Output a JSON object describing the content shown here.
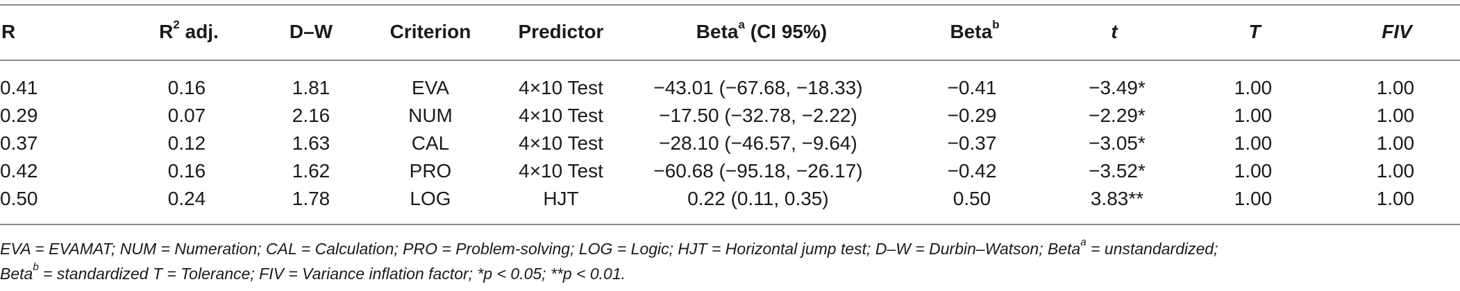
{
  "headers": {
    "r": "R",
    "r2_main": "R",
    "r2_sup": "2",
    "r2_rest": " adj.",
    "dw": "D–W",
    "criterion": "Criterion",
    "predictor": "Predictor",
    "beta_a_main": "Beta",
    "beta_a_sup": "a",
    "beta_a_rest": " (CI 95%)",
    "beta_b_main": "Beta",
    "beta_b_sup": "b",
    "t_small": "t",
    "t_cap": "T",
    "fiv": "FIV"
  },
  "rows": [
    {
      "r": "0.41",
      "r2": "0.16",
      "dw": "1.81",
      "criterion": "EVA",
      "predictor": "4×10 Test",
      "beta_a": "−43.01 (−67.68, −18.33)",
      "beta_b": "−0.41",
      "t": "−3.49*",
      "tol": "1.00",
      "fiv": "1.00"
    },
    {
      "r": "0.29",
      "r2": "0.07",
      "dw": "2.16",
      "criterion": "NUM",
      "predictor": "4×10 Test",
      "beta_a": "−17.50 (−32.78, −2.22)",
      "beta_b": "−0.29",
      "t": "−2.29*",
      "tol": "1.00",
      "fiv": "1.00"
    },
    {
      "r": "0.37",
      "r2": "0.12",
      "dw": "1.63",
      "criterion": "CAL",
      "predictor": "4×10 Test",
      "beta_a": "−28.10 (−46.57, −9.64)",
      "beta_b": "−0.37",
      "t": "−3.05*",
      "tol": "1.00",
      "fiv": "1.00"
    },
    {
      "r": "0.42",
      "r2": "0.16",
      "dw": "1.62",
      "criterion": "PRO",
      "predictor": "4×10 Test",
      "beta_a": "−60.68 (−95.18, −26.17)",
      "beta_b": "−0.42",
      "t": "−3.52*",
      "tol": "1.00",
      "fiv": "1.00"
    },
    {
      "r": "0.50",
      "r2": "0.24",
      "dw": "1.78",
      "criterion": "LOG",
      "predictor": "HJT",
      "beta_a": "0.22 (0.11, 0.35)",
      "beta_b": "0.50",
      "t": "3.83**",
      "tol": "1.00",
      "fiv": "1.00"
    }
  ],
  "footnote": {
    "line1_part1": "EVA = EVAMAT; NUM = Numeration; CAL = Calculation; PRO = Problem-solving; LOG = Logic; HJT = Horizontal jump test; D–W = Durbin–Watson; Beta",
    "line1_sup": "a",
    "line1_part2": " = unstandardized;",
    "line2_part1": "Beta",
    "line2_sup": "b",
    "line2_part2": " = standardized T = Tolerance; FIV = Variance inflation factor; *p < 0.05; **p < 0.01."
  }
}
